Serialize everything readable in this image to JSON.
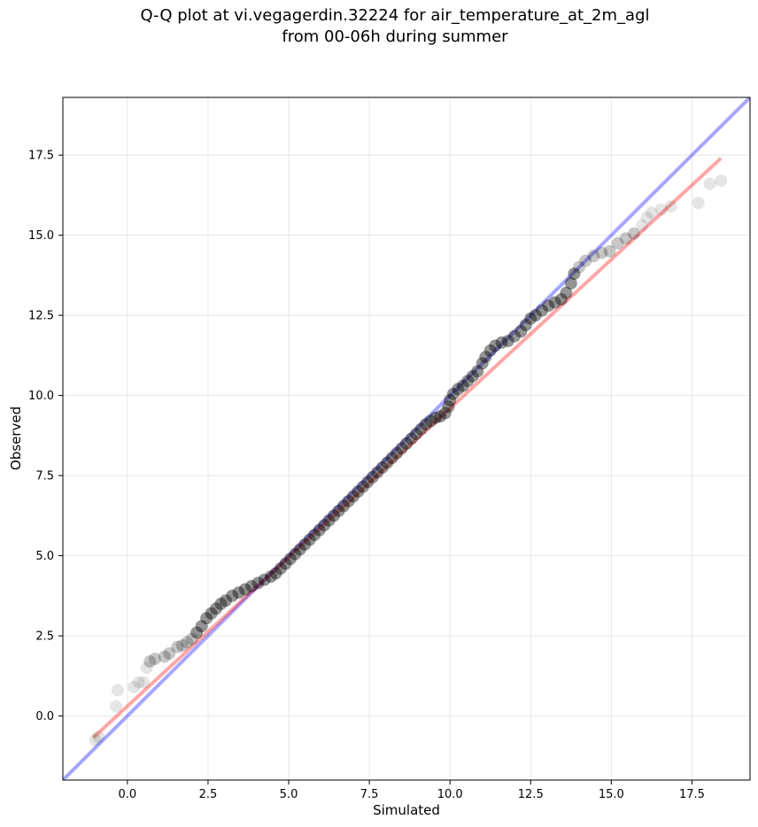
{
  "chart_data": {
    "type": "scatter",
    "title_line1": "Q-Q plot at vi.vegagerdin.32224 for air_temperature_at_2m_agl",
    "title_line2": "from 00-06h during summer",
    "xlabel": "Simulated",
    "ylabel": "Observed",
    "xlim": [
      -2.0,
      19.3
    ],
    "ylim": [
      -2.0,
      19.3
    ],
    "x_ticks": [
      0.0,
      2.5,
      5.0,
      7.5,
      10.0,
      12.5,
      15.0,
      17.5
    ],
    "x_tick_labels": [
      "0.0",
      "2.5",
      "5.0",
      "7.5",
      "10.0",
      "12.5",
      "15.0",
      "17.5"
    ],
    "y_ticks": [
      0.0,
      2.5,
      5.0,
      7.5,
      10.0,
      12.5,
      15.0,
      17.5
    ],
    "y_tick_labels": [
      "0.0",
      "2.5",
      "5.0",
      "7.5",
      "10.0",
      "12.5",
      "15.0",
      "17.5"
    ],
    "grid": true,
    "points_color": "#000000",
    "identity_line": {
      "color": "#0000ff",
      "opacity": 0.35,
      "x": [
        -2.0,
        19.3
      ],
      "y": [
        -2.0,
        19.3
      ]
    },
    "fit_line": {
      "color": "#ff0000",
      "opacity": 0.35,
      "x": [
        -1.05,
        18.4
      ],
      "y": [
        -0.67,
        17.4
      ]
    },
    "quantiles": [
      {
        "x": -1.0,
        "y": -0.75
      },
      {
        "x": -0.9,
        "y": -0.65
      },
      {
        "x": -0.35,
        "y": 0.3
      },
      {
        "x": -0.3,
        "y": 0.8
      },
      {
        "x": 0.2,
        "y": 0.9
      },
      {
        "x": 0.35,
        "y": 1.05
      },
      {
        "x": 0.5,
        "y": 1.05
      },
      {
        "x": 0.6,
        "y": 1.5
      },
      {
        "x": 0.7,
        "y": 1.7
      },
      {
        "x": 0.85,
        "y": 1.78
      },
      {
        "x": 1.15,
        "y": 1.85
      },
      {
        "x": 1.3,
        "y": 1.95
      },
      {
        "x": 1.55,
        "y": 2.15
      },
      {
        "x": 1.7,
        "y": 2.2
      },
      {
        "x": 1.85,
        "y": 2.3
      },
      {
        "x": 2.0,
        "y": 2.4
      },
      {
        "x": 2.15,
        "y": 2.6
      },
      {
        "x": 2.3,
        "y": 2.8
      },
      {
        "x": 2.45,
        "y": 3.05
      },
      {
        "x": 2.6,
        "y": 3.2
      },
      {
        "x": 2.75,
        "y": 3.35
      },
      {
        "x": 2.9,
        "y": 3.5
      },
      {
        "x": 3.05,
        "y": 3.6
      },
      {
        "x": 3.25,
        "y": 3.75
      },
      {
        "x": 3.45,
        "y": 3.85
      },
      {
        "x": 3.65,
        "y": 3.95
      },
      {
        "x": 3.85,
        "y": 4.05
      },
      {
        "x": 4.05,
        "y": 4.15
      },
      {
        "x": 4.25,
        "y": 4.25
      },
      {
        "x": 4.45,
        "y": 4.35
      },
      {
        "x": 4.6,
        "y": 4.45
      },
      {
        "x": 4.75,
        "y": 4.6
      },
      {
        "x": 4.9,
        "y": 4.75
      },
      {
        "x": 5.05,
        "y": 4.9
      },
      {
        "x": 5.2,
        "y": 5.05
      },
      {
        "x": 5.35,
        "y": 5.2
      },
      {
        "x": 5.5,
        "y": 5.35
      },
      {
        "x": 5.65,
        "y": 5.5
      },
      {
        "x": 5.8,
        "y": 5.65
      },
      {
        "x": 5.95,
        "y": 5.8
      },
      {
        "x": 6.1,
        "y": 5.95
      },
      {
        "x": 6.25,
        "y": 6.1
      },
      {
        "x": 6.4,
        "y": 6.25
      },
      {
        "x": 6.55,
        "y": 6.4
      },
      {
        "x": 6.7,
        "y": 6.55
      },
      {
        "x": 6.85,
        "y": 6.7
      },
      {
        "x": 7.0,
        "y": 6.85
      },
      {
        "x": 7.15,
        "y": 7.0
      },
      {
        "x": 7.3,
        "y": 7.15
      },
      {
        "x": 7.45,
        "y": 7.3
      },
      {
        "x": 7.6,
        "y": 7.45
      },
      {
        "x": 7.75,
        "y": 7.6
      },
      {
        "x": 7.9,
        "y": 7.75
      },
      {
        "x": 8.05,
        "y": 7.9
      },
      {
        "x": 8.2,
        "y": 8.05
      },
      {
        "x": 8.35,
        "y": 8.2
      },
      {
        "x": 8.5,
        "y": 8.35
      },
      {
        "x": 8.65,
        "y": 8.5
      },
      {
        "x": 8.8,
        "y": 8.65
      },
      {
        "x": 8.95,
        "y": 8.8
      },
      {
        "x": 9.1,
        "y": 8.95
      },
      {
        "x": 9.25,
        "y": 9.1
      },
      {
        "x": 9.4,
        "y": 9.2
      },
      {
        "x": 9.55,
        "y": 9.3
      },
      {
        "x": 9.7,
        "y": 9.35
      },
      {
        "x": 9.85,
        "y": 9.45
      },
      {
        "x": 9.95,
        "y": 9.65
      },
      {
        "x": 10.0,
        "y": 9.85
      },
      {
        "x": 10.1,
        "y": 10.05
      },
      {
        "x": 10.25,
        "y": 10.2
      },
      {
        "x": 10.4,
        "y": 10.3
      },
      {
        "x": 10.55,
        "y": 10.45
      },
      {
        "x": 10.7,
        "y": 10.6
      },
      {
        "x": 10.85,
        "y": 10.75
      },
      {
        "x": 11.0,
        "y": 11.0
      },
      {
        "x": 11.1,
        "y": 11.2
      },
      {
        "x": 11.25,
        "y": 11.4
      },
      {
        "x": 11.4,
        "y": 11.55
      },
      {
        "x": 11.6,
        "y": 11.65
      },
      {
        "x": 11.8,
        "y": 11.7
      },
      {
        "x": 12.0,
        "y": 11.85
      },
      {
        "x": 12.2,
        "y": 12.0
      },
      {
        "x": 12.35,
        "y": 12.2
      },
      {
        "x": 12.5,
        "y": 12.4
      },
      {
        "x": 12.65,
        "y": 12.5
      },
      {
        "x": 12.85,
        "y": 12.65
      },
      {
        "x": 13.05,
        "y": 12.8
      },
      {
        "x": 13.25,
        "y": 12.9
      },
      {
        "x": 13.45,
        "y": 13.0
      },
      {
        "x": 13.6,
        "y": 13.2
      },
      {
        "x": 13.75,
        "y": 13.5
      },
      {
        "x": 13.85,
        "y": 13.8
      },
      {
        "x": 14.0,
        "y": 14.0
      },
      {
        "x": 14.2,
        "y": 14.2
      },
      {
        "x": 14.45,
        "y": 14.35
      },
      {
        "x": 14.7,
        "y": 14.45
      },
      {
        "x": 14.95,
        "y": 14.5
      },
      {
        "x": 15.2,
        "y": 14.75
      },
      {
        "x": 15.45,
        "y": 14.9
      },
      {
        "x": 15.7,
        "y": 15.05
      },
      {
        "x": 15.95,
        "y": 15.3
      },
      {
        "x": 16.1,
        "y": 15.55
      },
      {
        "x": 16.25,
        "y": 15.7
      },
      {
        "x": 16.55,
        "y": 15.8
      },
      {
        "x": 16.85,
        "y": 15.9
      },
      {
        "x": 17.7,
        "y": 16.0
      },
      {
        "x": 18.05,
        "y": 16.6
      },
      {
        "x": 18.4,
        "y": 16.7
      }
    ]
  }
}
